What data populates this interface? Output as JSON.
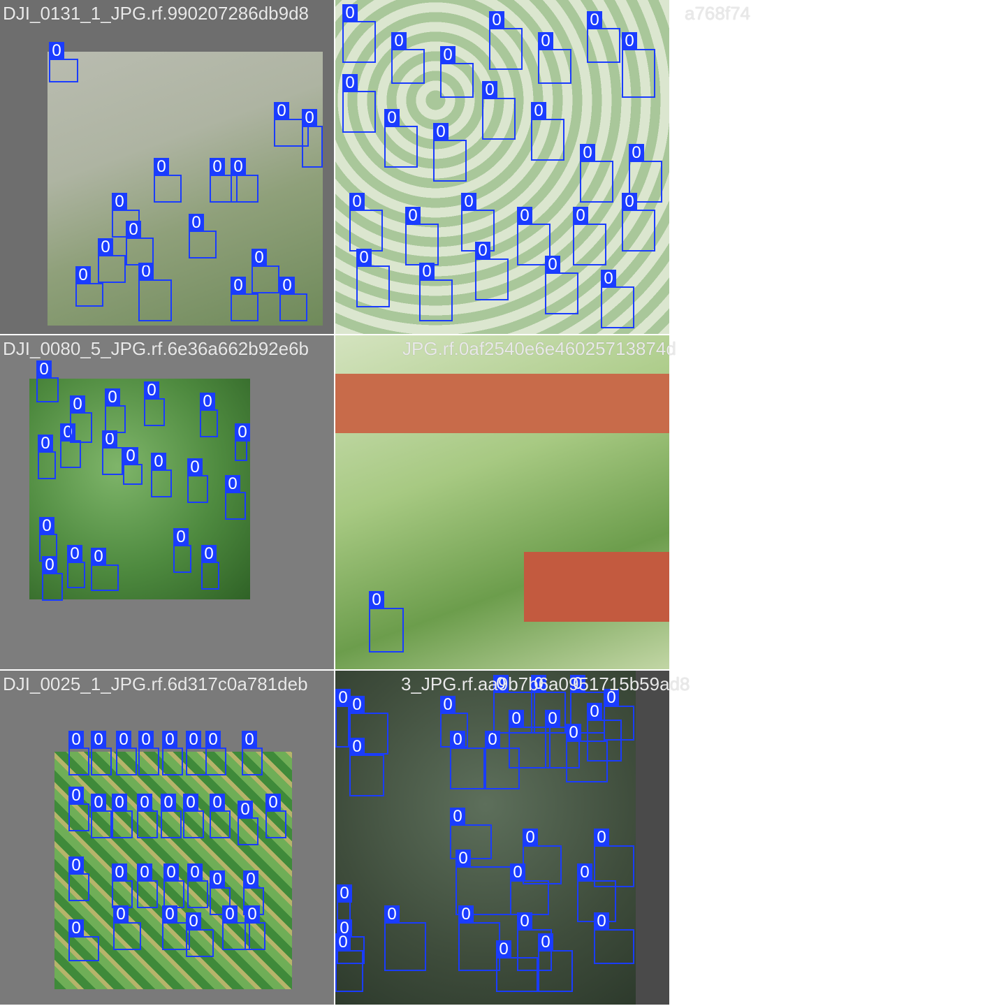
{
  "mosaic": {
    "tiles": [
      {
        "caption": "DJI_0131_1_JPG.rf.990207286db9d8",
        "photo_style": "light-gray-field",
        "box_label": "0"
      },
      {
        "caption": "a768f74",
        "photo_style": "pale-palm-plantation",
        "box_label": "0"
      },
      {
        "caption": "DJI_0080_5_JPG.rf.6e36a662b92e6b",
        "photo_style": "green-canopy-square",
        "box_label": "0"
      },
      {
        "caption": "JPG.rf.0af2540e6e46025713874d",
        "photo_style": "buildings-and-road",
        "box_label": "0"
      },
      {
        "caption": "DJI_0025_1_JPG.rf.6d317c0a781deb",
        "photo_style": "palm-grid-square",
        "box_label": "0"
      },
      {
        "caption": "3_JPG.rf.aa9b7b6a0951715b59ad8",
        "photo_style": "dark-forest",
        "box_label": "0"
      }
    ]
  },
  "colors": {
    "box": "#1a3cff",
    "caption": "#e9e9e9",
    "tile_background": "#7a7a7a"
  }
}
